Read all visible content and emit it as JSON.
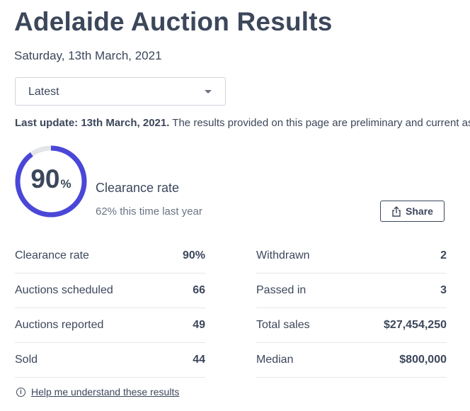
{
  "header": {
    "title": "Adelaide Auction Results",
    "date": "Saturday, 13th March, 2021"
  },
  "filter": {
    "selected": "Latest"
  },
  "update": {
    "bold": "Last update: 13th March, 2021.",
    "text": " The results provided on this page are preliminary and current as at"
  },
  "summary": {
    "rate_value": "90",
    "rate_unit": "%",
    "rate_fraction": 0.9,
    "label": "Clearance rate",
    "previous": "62% this time last year",
    "accent_color": "#4a47d8",
    "track_color": "#e3e5e9"
  },
  "share": {
    "label": "Share"
  },
  "stats_left": [
    {
      "label": "Clearance rate",
      "value": "90%"
    },
    {
      "label": "Auctions scheduled",
      "value": "66"
    },
    {
      "label": "Auctions reported",
      "value": "49"
    },
    {
      "label": "Sold",
      "value": "44"
    }
  ],
  "stats_right": [
    {
      "label": "Withdrawn",
      "value": "2"
    },
    {
      "label": "Passed in",
      "value": "3"
    },
    {
      "label": "Total sales",
      "value": "$27,454,250"
    },
    {
      "label": "Median",
      "value": "$800,000"
    }
  ],
  "help": {
    "icon": "info-icon",
    "icon_glyph": "i",
    "link": "Help me understand these results"
  }
}
